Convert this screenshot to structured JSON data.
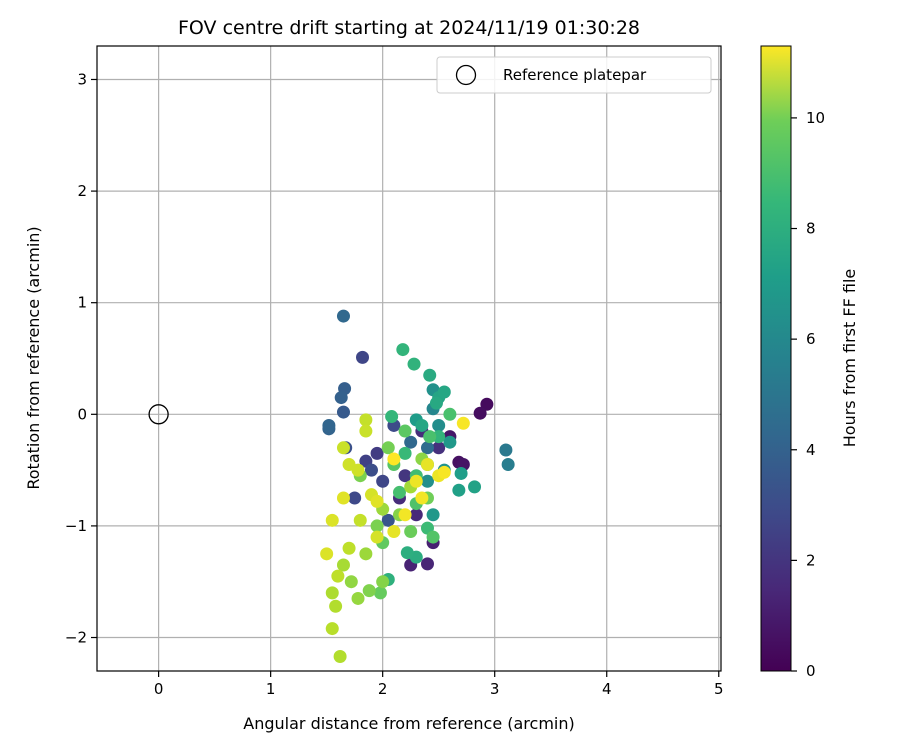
{
  "chart_data": {
    "type": "scatter",
    "title": "FOV centre drift starting at 2024/11/19 01:30:28",
    "xlabel": "Angular distance from reference (arcmin)",
    "ylabel": "Rotation from reference (arcmin)",
    "xlim": [
      -0.55,
      5.02
    ],
    "ylim": [
      -2.3,
      3.3
    ],
    "xticks": [
      0,
      1,
      2,
      3,
      4,
      5
    ],
    "yticks": [
      -2,
      -1,
      0,
      1,
      2,
      3
    ],
    "grid": true,
    "legend": {
      "position": "top-right",
      "entries": [
        "Reference platepar"
      ]
    },
    "reference_point": {
      "x": 0,
      "y": 0,
      "marker": "open-circle"
    },
    "colorbar": {
      "label": "Hours from first FF file",
      "min": 0,
      "max": 11.3,
      "ticks": [
        0,
        2,
        4,
        6,
        8,
        10
      ],
      "colormap": "viridis"
    },
    "points": [
      [
        2.93,
        0.09,
        0.3
      ],
      [
        2.87,
        0.01,
        0.4
      ],
      [
        2.68,
        -0.43,
        0.5
      ],
      [
        2.72,
        -0.45,
        0.6
      ],
      [
        2.6,
        -0.2,
        0.7
      ],
      [
        2.45,
        -1.15,
        1.0
      ],
      [
        2.25,
        -1.35,
        1.1
      ],
      [
        2.4,
        -1.34,
        1.2
      ],
      [
        2.3,
        -0.9,
        1.3
      ],
      [
        2.15,
        -0.75,
        1.4
      ],
      [
        2.35,
        -0.15,
        1.5
      ],
      [
        2.5,
        -0.3,
        1.6
      ],
      [
        2.2,
        -0.55,
        1.8
      ],
      [
        1.95,
        -0.35,
        2.0
      ],
      [
        1.85,
        -0.42,
        2.2
      ],
      [
        1.82,
        0.51,
        2.4
      ],
      [
        2.0,
        -0.6,
        2.4
      ],
      [
        1.75,
        -0.75,
        2.5
      ],
      [
        2.1,
        -0.1,
        2.6
      ],
      [
        1.9,
        -0.5,
        2.7
      ],
      [
        1.67,
        -0.3,
        2.8
      ],
      [
        2.05,
        -0.95,
        3.0
      ],
      [
        1.65,
        0.02,
        3.2
      ],
      [
        1.66,
        0.23,
        3.4
      ],
      [
        1.63,
        0.15,
        3.5
      ],
      [
        1.52,
        -0.13,
        3.6
      ],
      [
        1.52,
        -0.1,
        3.7
      ],
      [
        1.65,
        0.88,
        3.8
      ],
      [
        2.25,
        -0.25,
        3.8
      ],
      [
        2.4,
        -0.3,
        4.0
      ],
      [
        3.1,
        -0.32,
        4.6
      ],
      [
        3.12,
        -0.45,
        4.8
      ],
      [
        2.45,
        0.05,
        5.2
      ],
      [
        2.5,
        -0.1,
        5.5
      ],
      [
        2.4,
        -0.6,
        5.6
      ],
      [
        2.45,
        0.22,
        5.7
      ],
      [
        2.55,
        -0.5,
        5.8
      ],
      [
        2.6,
        -0.25,
        6.0
      ],
      [
        2.45,
        -0.9,
        6.0
      ],
      [
        2.3,
        -0.05,
        6.2
      ],
      [
        2.7,
        -0.53,
        6.3
      ],
      [
        2.68,
        -0.68,
        6.4
      ],
      [
        2.82,
        -0.65,
        6.5
      ],
      [
        2.5,
        0.15,
        6.6
      ],
      [
        2.55,
        0.2,
        6.7
      ],
      [
        2.35,
        -0.1,
        6.7
      ],
      [
        2.48,
        0.1,
        6.8
      ],
      [
        2.42,
        0.35,
        6.9
      ],
      [
        2.3,
        -1.28,
        7.0
      ],
      [
        2.22,
        -1.24,
        7.1
      ],
      [
        2.05,
        -1.48,
        7.2
      ],
      [
        2.4,
        -0.45,
        7.2
      ],
      [
        2.28,
        0.45,
        7.3
      ],
      [
        2.18,
        0.58,
        7.4
      ],
      [
        2.5,
        -0.2,
        7.4
      ],
      [
        2.08,
        -0.02,
        7.5
      ],
      [
        2.2,
        -0.35,
        7.6
      ],
      [
        2.4,
        -1.02,
        7.7
      ],
      [
        2.3,
        -0.55,
        7.8
      ],
      [
        2.15,
        -0.7,
        7.9
      ],
      [
        2.42,
        -0.2,
        8.0
      ],
      [
        2.6,
        0.0,
        8.0
      ],
      [
        2.3,
        -0.8,
        8.1
      ],
      [
        2.45,
        -1.1,
        8.2
      ],
      [
        2.1,
        -0.45,
        8.3
      ],
      [
        2.2,
        -0.15,
        8.4
      ],
      [
        2.0,
        -1.15,
        8.5
      ],
      [
        1.98,
        -1.6,
        8.6
      ],
      [
        2.25,
        -1.05,
        8.7
      ],
      [
        2.4,
        -0.75,
        8.8
      ],
      [
        2.05,
        -0.3,
        8.9
      ],
      [
        1.8,
        -0.55,
        9.0
      ],
      [
        1.95,
        -1.0,
        9.0
      ],
      [
        1.88,
        -1.58,
        9.1
      ],
      [
        2.0,
        -1.5,
        9.2
      ],
      [
        2.15,
        -0.9,
        9.2
      ],
      [
        2.35,
        -0.4,
        9.3
      ],
      [
        1.72,
        -1.5,
        9.4
      ],
      [
        1.78,
        -1.65,
        9.5
      ],
      [
        1.85,
        -1.25,
        9.6
      ],
      [
        2.0,
        -0.85,
        9.6
      ],
      [
        2.25,
        -0.65,
        9.7
      ],
      [
        1.65,
        -1.35,
        9.8
      ],
      [
        1.55,
        -1.6,
        9.9
      ],
      [
        1.58,
        -1.72,
        10.0
      ],
      [
        1.62,
        -2.17,
        10.0
      ],
      [
        1.55,
        -1.92,
        10.1
      ],
      [
        1.6,
        -1.45,
        10.2
      ],
      [
        1.7,
        -1.2,
        10.2
      ],
      [
        1.8,
        -0.95,
        10.3
      ],
      [
        1.85,
        -0.05,
        10.3
      ],
      [
        1.85,
        -0.15,
        10.4
      ],
      [
        1.65,
        -0.3,
        10.4
      ],
      [
        1.7,
        -0.45,
        10.5
      ],
      [
        1.78,
        -0.5,
        10.5
      ],
      [
        1.9,
        -0.72,
        10.6
      ],
      [
        1.95,
        -1.1,
        10.6
      ],
      [
        1.5,
        -1.25,
        10.7
      ],
      [
        1.55,
        -0.95,
        10.7
      ],
      [
        1.65,
        -0.75,
        10.8
      ],
      [
        1.95,
        -0.78,
        10.8
      ],
      [
        2.1,
        -1.05,
        10.9
      ],
      [
        2.4,
        -0.45,
        10.9
      ],
      [
        2.5,
        -0.55,
        11.0
      ],
      [
        2.3,
        -0.6,
        11.0
      ],
      [
        2.2,
        -0.9,
        11.1
      ],
      [
        2.35,
        -0.75,
        11.1
      ],
      [
        2.72,
        -0.08,
        11.2
      ],
      [
        2.55,
        -0.52,
        11.2
      ],
      [
        2.1,
        -0.4,
        11.3
      ]
    ]
  }
}
